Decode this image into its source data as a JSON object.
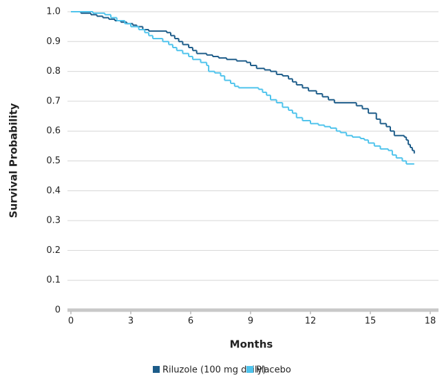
{
  "chart_data": {
    "type": "step",
    "xlabel": "Months",
    "ylabel": "Survival Probability",
    "xlim": [
      0,
      18
    ],
    "xticks": [
      0,
      3,
      6,
      9,
      12,
      15,
      18
    ],
    "ylim": [
      0,
      1
    ],
    "yticks": [
      0,
      0.1,
      0.2,
      0.3,
      0.4,
      0.5,
      0.6,
      0.7,
      0.8,
      0.9,
      {
        "value": 1,
        "label": "1.0"
      }
    ],
    "grid": true,
    "legend": "bottom",
    "series": [
      {
        "name": "Riluzole (100 mg daily)",
        "color": "#1d5c89",
        "x": [
          0,
          0.5,
          1,
          1.3,
          1.6,
          1.9,
          2.2,
          2.5,
          2.8,
          3.1,
          3.3,
          3.6,
          3.9,
          4.8,
          5.0,
          5.2,
          5.4,
          5.6,
          5.9,
          6.1,
          6.3,
          6.8,
          7.1,
          7.4,
          7.8,
          8.3,
          8.8,
          9.0,
          9.3,
          9.7,
          10.0,
          10.3,
          10.6,
          10.9,
          11.1,
          11.3,
          11.6,
          11.9,
          12.3,
          12.6,
          12.9,
          13.2,
          14.3,
          14.6,
          14.9,
          15.3,
          15.5,
          15.8,
          16.0,
          16.2,
          16.7,
          16.8,
          16.9,
          17.0,
          17.1,
          17.2
        ],
        "values": [
          1.0,
          0.995,
          0.99,
          0.985,
          0.98,
          0.975,
          0.97,
          0.965,
          0.96,
          0.955,
          0.95,
          0.94,
          0.935,
          0.93,
          0.92,
          0.91,
          0.9,
          0.89,
          0.88,
          0.87,
          0.86,
          0.855,
          0.85,
          0.845,
          0.84,
          0.835,
          0.83,
          0.82,
          0.81,
          0.805,
          0.8,
          0.79,
          0.785,
          0.775,
          0.765,
          0.755,
          0.745,
          0.735,
          0.725,
          0.715,
          0.705,
          0.695,
          0.685,
          0.675,
          0.66,
          0.64,
          0.625,
          0.615,
          0.6,
          0.585,
          0.58,
          0.57,
          0.555,
          0.545,
          0.535,
          0.525
        ]
      },
      {
        "name": "Placebo",
        "color": "#4ec3ec",
        "x": [
          0,
          1.1,
          1.7,
          2.0,
          2.3,
          2.7,
          3.0,
          3.4,
          3.7,
          3.9,
          4.1,
          4.6,
          4.9,
          5.1,
          5.3,
          5.6,
          5.9,
          6.1,
          6.5,
          6.8,
          6.9,
          7.2,
          7.5,
          7.7,
          8.0,
          8.2,
          8.4,
          9.4,
          9.6,
          9.8,
          10.0,
          10.3,
          10.6,
          10.9,
          11.1,
          11.3,
          11.6,
          12.0,
          12.4,
          12.7,
          13.0,
          13.3,
          13.5,
          13.8,
          14.1,
          14.5,
          14.7,
          14.9,
          15.2,
          15.5,
          15.9,
          16.1,
          16.3,
          16.6,
          16.8,
          17.2
        ],
        "values": [
          1.0,
          0.995,
          0.99,
          0.98,
          0.97,
          0.96,
          0.95,
          0.94,
          0.93,
          0.92,
          0.91,
          0.9,
          0.89,
          0.88,
          0.87,
          0.86,
          0.85,
          0.84,
          0.83,
          0.82,
          0.8,
          0.795,
          0.785,
          0.77,
          0.76,
          0.75,
          0.745,
          0.74,
          0.73,
          0.72,
          0.705,
          0.695,
          0.68,
          0.67,
          0.66,
          0.645,
          0.635,
          0.625,
          0.62,
          0.615,
          0.61,
          0.6,
          0.595,
          0.585,
          0.58,
          0.575,
          0.57,
          0.56,
          0.55,
          0.54,
          0.535,
          0.52,
          0.51,
          0.5,
          0.49,
          0.49
        ]
      }
    ]
  }
}
